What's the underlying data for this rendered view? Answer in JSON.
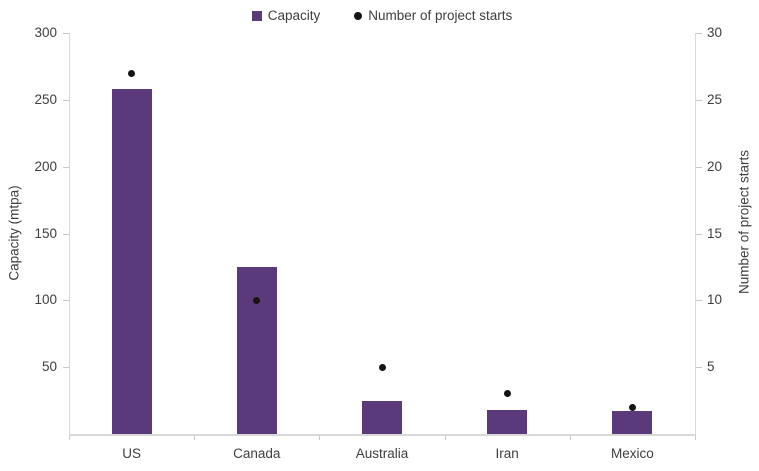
{
  "chart_data": {
    "type": "bar",
    "subtype": "combo-bar-scatter-dual-axis",
    "categories": [
      "US",
      "Canada",
      "Australia",
      "Iran",
      "Mexico"
    ],
    "series": [
      {
        "name": "Capacity",
        "type": "bar",
        "axis": "left",
        "values": [
          258,
          125,
          25,
          18,
          17
        ]
      },
      {
        "name": "Number of project starts",
        "type": "scatter",
        "axis": "right",
        "values": [
          27,
          10,
          5,
          3,
          2
        ]
      }
    ],
    "title": "",
    "left_axis": {
      "label": "Capacity (mtpa)",
      "min": 0,
      "max": 300,
      "ticks": [
        50,
        100,
        150,
        200,
        250,
        300
      ]
    },
    "right_axis": {
      "label": "Number of project starts",
      "min": 0,
      "max": 30,
      "ticks": [
        5,
        10,
        15,
        20,
        25,
        30
      ]
    },
    "legend": {
      "position": "top-center"
    },
    "grid": false
  },
  "colors": {
    "bar": "#5b3a7b",
    "marker": "#141414",
    "axis_line": "#d9d9d9",
    "text": "#404040"
  }
}
